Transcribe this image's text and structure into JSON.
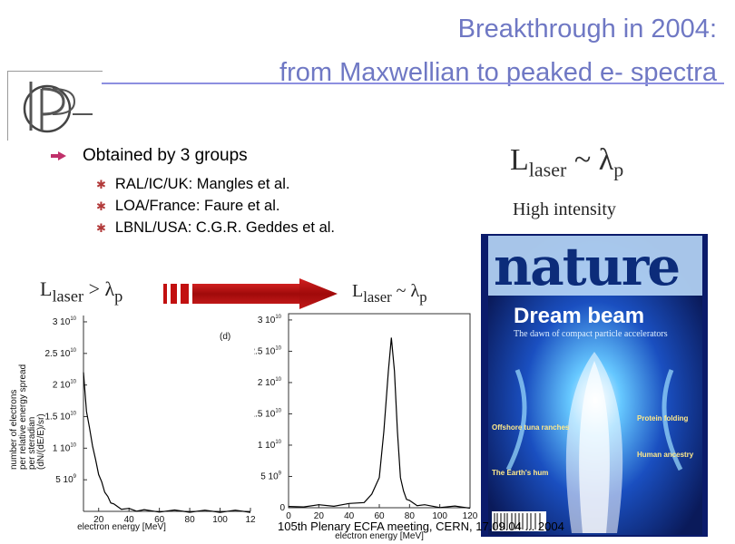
{
  "slide": {
    "title_line1": "Breakthrough in 2004:",
    "title_line2": "from Maxwellian to peaked e- spectra",
    "bullet_main": "Obtained by 3 groups",
    "sub_bullets": [
      "RAL/IC/UK: Mangles et al.",
      "LOA/France: Faure et al.",
      "LBNL/USA: C.G.R. Geddes et al."
    ],
    "formula_right_L": "L",
    "formula_right_sub": "laser",
    "formula_right_rest": " ~ ",
    "formula_right_lambda": "λ",
    "formula_right_p": "p",
    "high_intensity": "High intensity",
    "formula_left_L": "L",
    "formula_left_sub": "laser",
    "formula_left_op": " > ",
    "formula_left_lambda": "λ",
    "formula_left_p": "p",
    "formula_mid_L": "L",
    "formula_mid_sub": "laser",
    "formula_mid_op": " ~ ",
    "formula_mid_lambda": "λ",
    "formula_mid_p": "p",
    "footer": "105th Plenary ECFA meeting, CERN, 17.09.04 ... 2004",
    "colors": {
      "title": "#6f78c4",
      "rule": "#8d8fe0",
      "bullet": "#c0306a",
      "arrow": "#c21010"
    }
  },
  "cover": {
    "masthead": "nature",
    "headline": "Dream beam",
    "subheadline": "The dawn of compact particle accelerators",
    "left_blurbs": [
      "Offshore tuna ranches",
      "The Earth's hum"
    ],
    "right_blurbs": [
      "Protein folding",
      "Human ancestry"
    ]
  },
  "chart_data": [
    {
      "type": "line",
      "title": "",
      "panel_label": "(d)",
      "xlabel": "electron energy [MeV]",
      "ylabel": "number of electrons per relative energy spread per steradian (dN/(dE/E) / sr)",
      "x_ticks": [
        "20",
        "40",
        "60",
        "80",
        "100",
        "12"
      ],
      "y_ticks": [
        "5 10^9",
        "1 10^10",
        "1.5 10^10",
        "2 10^10",
        "2.5 10^10",
        "3 10^10"
      ],
      "xlim": [
        10,
        120
      ],
      "ylim": [
        0,
        31000000000.0
      ],
      "series": [
        {
          "x": [
            10,
            12,
            14,
            16,
            18,
            20,
            22,
            24,
            26,
            28,
            30,
            35,
            40,
            45,
            50,
            60,
            70,
            80,
            90,
            100,
            110,
            120
          ],
          "y": [
            22000000000.0,
            16000000000.0,
            13000000000.0,
            10500000000.0,
            8000000000.0,
            6000000000.0,
            4500000000.0,
            3200000000.0,
            2200000000.0,
            1500000000.0,
            1000000000.0,
            500000000.0,
            300000000.0,
            200000000.0,
            100000000.0,
            60000000.0,
            40000000.0,
            30000000.0,
            20000000.0,
            20000000.0,
            10000000.0,
            10000000.0
          ]
        }
      ]
    },
    {
      "type": "line",
      "title": "",
      "xlabel": "electron energy [MeV]",
      "ylabel": "",
      "x_ticks": [
        "0",
        "20",
        "40",
        "60",
        "80",
        "100",
        "120"
      ],
      "y_ticks": [
        "0",
        "5 10^9",
        "1 10^10",
        "1.5 10^10",
        "2 10^10",
        "2.5 10^10",
        "3 10^10"
      ],
      "xlim": [
        0,
        120
      ],
      "ylim": [
        0,
        31000000000.0
      ],
      "series": [
        {
          "x": [
            0,
            10,
            20,
            30,
            40,
            50,
            55,
            60,
            63,
            66,
            68,
            70,
            72,
            74,
            76,
            78,
            80,
            85,
            90,
            100,
            110,
            120
          ],
          "y": [
            200000000.0,
            300000000.0,
            300000000.0,
            400000000.0,
            500000000.0,
            1000000000.0,
            2000000000.0,
            5000000000.0,
            12000000000.0,
            22000000000.0,
            27000000000.0,
            22000000000.0,
            12000000000.0,
            5000000000.0,
            2500000000.0,
            1500000000.0,
            1000000000.0,
            500000000.0,
            300000000.0,
            200000000.0,
            100000000.0,
            100000000.0
          ]
        }
      ]
    }
  ]
}
